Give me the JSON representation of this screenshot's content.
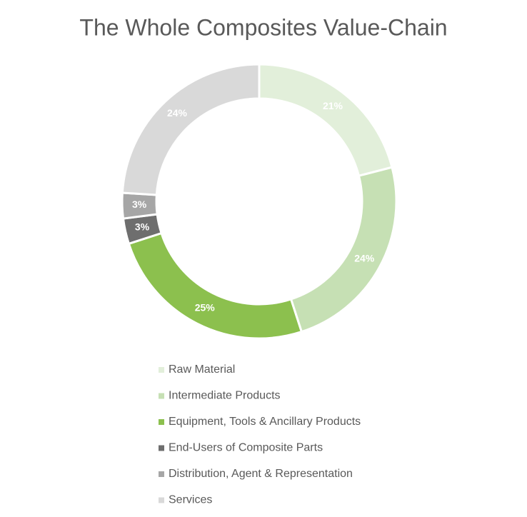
{
  "chart_data": {
    "type": "donut",
    "title": "The Whole Composites Value-Chain",
    "categories": [
      "Raw Material",
      "Intermediate Products",
      "Equipment, Tools & Ancillary Products",
      "End-Users of Composite Parts",
      "Distribution, Agent & Representation",
      "Services"
    ],
    "values": [
      21,
      24,
      25,
      3,
      3,
      24
    ],
    "value_labels": [
      "21%",
      "24%",
      "25%",
      "3%",
      "3%",
      "24%"
    ],
    "colors": [
      "#e2efda",
      "#c6e0b4",
      "#8cc04e",
      "#6e6e6e",
      "#a6a6a6",
      "#d9d9d9"
    ],
    "legend": "bottom"
  }
}
